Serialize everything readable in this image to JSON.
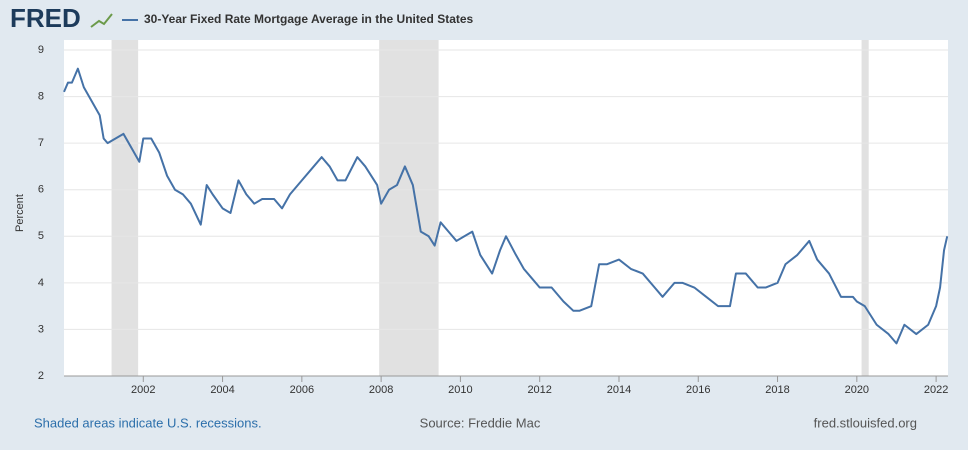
{
  "chart_data": {
    "type": "line",
    "logo": "FRED",
    "title": "30-Year Fixed Rate Mortgage Average in the United States",
    "y_label": "Percent",
    "footer_left": "Shaded areas indicate U.S. recessions.",
    "footer_center": "Source: Freddie Mac",
    "footer_right": "fred.stlouisfed.org",
    "xlim": [
      2000,
      2022.3
    ],
    "xticks": [
      2002,
      2004,
      2006,
      2008,
      2010,
      2012,
      2014,
      2016,
      2018,
      2020,
      2022
    ],
    "ylim": [
      2,
      9
    ],
    "yticks": [
      2,
      3,
      4,
      5,
      6,
      7,
      8,
      9
    ],
    "grid": true,
    "recessions": [
      [
        2001.2,
        2001.87
      ],
      [
        2007.95,
        2009.45
      ],
      [
        2020.12,
        2020.3
      ]
    ],
    "recession_color": "#e1e1e1",
    "series": [
      {
        "name": "30-Year Fixed Rate Mortgage Average in the United States",
        "color": "#4572a7",
        "x": [
          2000.0,
          2000.1,
          2000.2,
          2000.35,
          2000.5,
          2000.7,
          2000.9,
          2001.0,
          2001.1,
          2001.3,
          2001.5,
          2001.7,
          2001.9,
          2002.0,
          2002.2,
          2002.4,
          2002.6,
          2002.8,
          2003.0,
          2003.2,
          2003.45,
          2003.6,
          2003.75,
          2004.0,
          2004.2,
          2004.4,
          2004.6,
          2004.8,
          2005.0,
          2005.3,
          2005.5,
          2005.7,
          2006.0,
          2006.3,
          2006.5,
          2006.7,
          2006.9,
          2007.1,
          2007.4,
          2007.6,
          2007.9,
          2008.0,
          2008.2,
          2008.4,
          2008.6,
          2008.8,
          2008.9,
          2009.0,
          2009.2,
          2009.35,
          2009.5,
          2009.7,
          2009.9,
          2010.1,
          2010.3,
          2010.5,
          2010.8,
          2011.0,
          2011.15,
          2011.4,
          2011.6,
          2011.8,
          2012.0,
          2012.3,
          2012.6,
          2012.85,
          2013.0,
          2013.3,
          2013.5,
          2013.7,
          2014.0,
          2014.3,
          2014.6,
          2014.9,
          2015.1,
          2015.4,
          2015.6,
          2015.9,
          2016.2,
          2016.5,
          2016.8,
          2016.95,
          2017.2,
          2017.5,
          2017.7,
          2018.0,
          2018.2,
          2018.5,
          2018.8,
          2019.0,
          2019.3,
          2019.6,
          2019.9,
          2020.0,
          2020.2,
          2020.5,
          2020.8,
          2021.0,
          2021.2,
          2021.5,
          2021.8,
          2022.0,
          2022.1,
          2022.2,
          2022.28
        ],
        "values": [
          8.1,
          8.3,
          8.3,
          8.6,
          8.2,
          7.9,
          7.6,
          7.1,
          7.0,
          7.1,
          7.2,
          6.9,
          6.6,
          7.1,
          7.1,
          6.8,
          6.3,
          6.0,
          5.9,
          5.7,
          5.25,
          6.1,
          5.9,
          5.6,
          5.5,
          6.2,
          5.9,
          5.7,
          5.8,
          5.8,
          5.6,
          5.9,
          6.2,
          6.5,
          6.7,
          6.5,
          6.2,
          6.2,
          6.7,
          6.5,
          6.1,
          5.7,
          6.0,
          6.1,
          6.5,
          6.1,
          5.6,
          5.1,
          5.0,
          4.8,
          5.3,
          5.1,
          4.9,
          5.0,
          5.1,
          4.6,
          4.2,
          4.7,
          5.0,
          4.6,
          4.3,
          4.1,
          3.9,
          3.9,
          3.6,
          3.4,
          3.4,
          3.5,
          4.4,
          4.4,
          4.5,
          4.3,
          4.2,
          3.9,
          3.7,
          4.0,
          4.0,
          3.9,
          3.7,
          3.5,
          3.5,
          4.2,
          4.2,
          3.9,
          3.9,
          4.0,
          4.4,
          4.6,
          4.9,
          4.5,
          4.2,
          3.7,
          3.7,
          3.6,
          3.5,
          3.1,
          2.9,
          2.7,
          3.1,
          2.9,
          3.1,
          3.5,
          3.9,
          4.7,
          5.0
        ]
      }
    ]
  }
}
